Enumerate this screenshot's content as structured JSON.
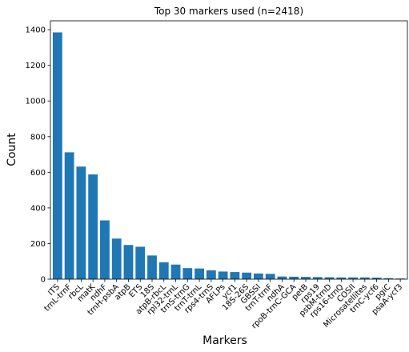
{
  "chart_data": {
    "type": "bar",
    "title": "Top 30 markers used (n=2418)",
    "xlabel": "Markers",
    "ylabel": "Count",
    "ylim": [
      0,
      1450
    ],
    "yticks": [
      0,
      200,
      400,
      600,
      800,
      1000,
      1200,
      1400
    ],
    "grid": false,
    "bar_color": "#1f77b4",
    "categories": [
      "ITS",
      "trnL-trnF",
      "rbcL",
      "matK",
      "ndhF",
      "trnH-psbA",
      "atpB",
      "ETS",
      "18S",
      "atpB-rbcL",
      "rpl32-trnL",
      "trnS-trnG",
      "trnT-trnL",
      "rps4-trnS",
      "AFLPs",
      "ycf1",
      "18S-26S",
      "GBSSI",
      "trnT-trnF",
      "ndhA",
      "rpoB-trnC-GCA",
      "petB",
      "rps19",
      "psbM-trnD",
      "rps16-trnQ",
      "COSII",
      "Microsatellites",
      "trnC-ycf6",
      "pgiC",
      "psaA-ycf3"
    ],
    "values": [
      1385,
      712,
      632,
      588,
      330,
      228,
      192,
      182,
      133,
      95,
      82,
      62,
      60,
      50,
      43,
      40,
      37,
      32,
      30,
      15,
      14,
      13,
      12,
      11,
      10,
      10,
      10,
      9,
      6,
      4
    ]
  }
}
